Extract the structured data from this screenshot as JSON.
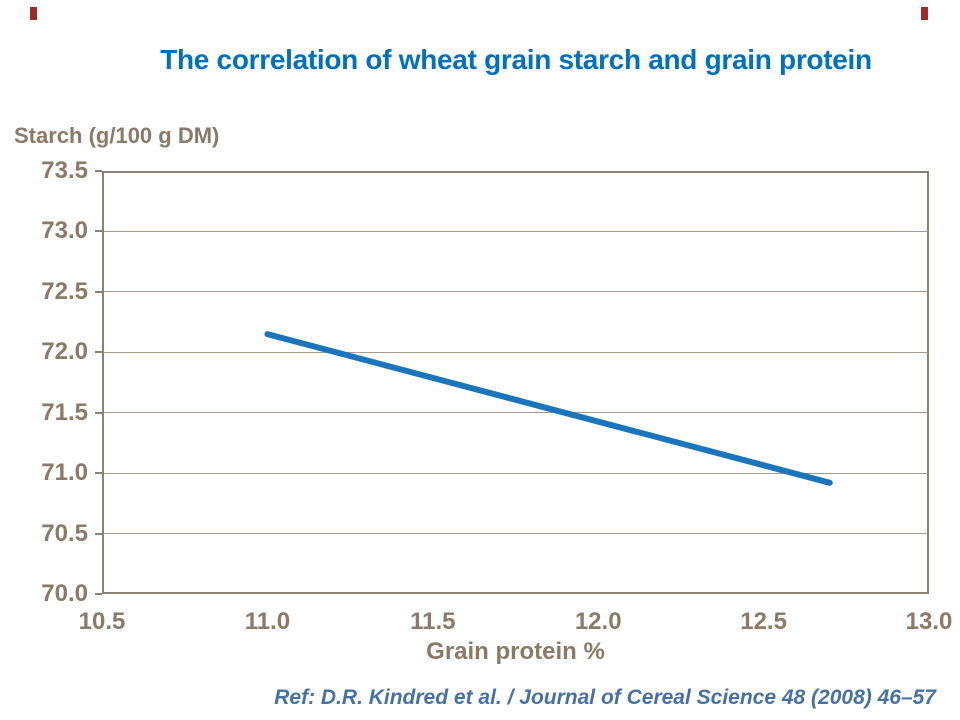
{
  "slide": {
    "title": "The correlation of wheat grain starch and grain protein",
    "reference": "Ref: D.R. Kindred et al. / Journal of Cereal Science 48 (2008) 46–57"
  },
  "colors": {
    "title_blue": "#0070c0",
    "axis_text_brown": "#8a7a66",
    "frame_brown": "#8c8272",
    "gridline_brown": "#a49b8d",
    "series_blue": "#1b75bc",
    "reference_blue": "#4472a8",
    "corner_accent_red": "#9e2b25"
  },
  "chart_data": {
    "type": "line",
    "title": "The correlation of wheat grain starch and grain protein",
    "xlabel": "Grain protein %",
    "ylabel": "Starch (g/100 g DM)",
    "xlim": [
      10.5,
      13.0
    ],
    "ylim": [
      70.0,
      73.5
    ],
    "x_ticks": [
      "10.5",
      "11.0",
      "11.5",
      "12.0",
      "12.5",
      "13.0"
    ],
    "y_ticks": [
      "73.5",
      "73.0",
      "72.5",
      "72.0",
      "71.5",
      "71.0",
      "70.5",
      "70.0"
    ],
    "grid": "horizontal gridlines at each 0.5 y-step, no vertical gridlines",
    "legend_position": "none",
    "series": [
      {
        "name": "starch-vs-protein-trend",
        "x": [
          11.0,
          12.7
        ],
        "y": [
          72.15,
          70.92
        ],
        "stroke_width": 6
      }
    ]
  }
}
